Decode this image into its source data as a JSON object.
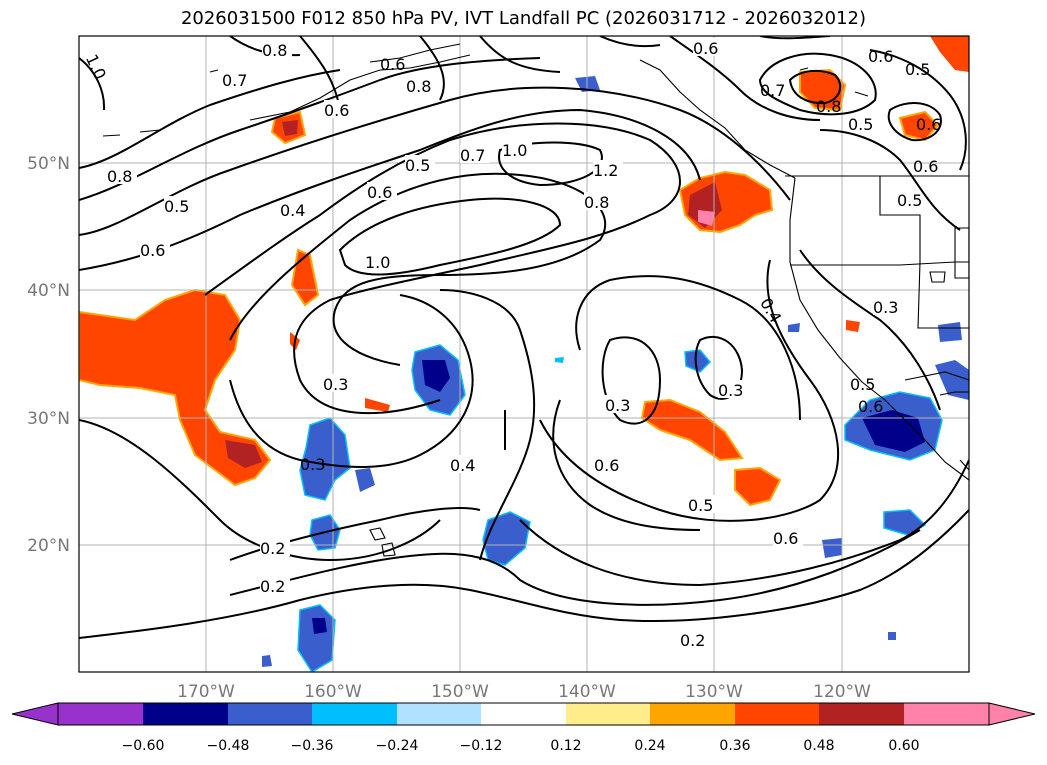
{
  "title": "2026031500 F012 850 hPa PV, IVT Landfall PC (2026031712 - 2026032012)",
  "lon_ticks": [
    "170°W",
    "160°W",
    "150°W",
    "140°W",
    "130°W",
    "120°W"
  ],
  "lat_ticks": [
    "50°N",
    "40°N",
    "30°N",
    "20°N"
  ],
  "colorbar": {
    "tick_labels": [
      "−0.60",
      "−0.48",
      "−0.36",
      "−0.24",
      "−0.12",
      "0.12",
      "0.24",
      "0.36",
      "0.48",
      "0.60"
    ],
    "colors": [
      "#9932cc",
      "#00008b",
      "#3a5fcd",
      "#00bfff",
      "#b0e2ff",
      "#ffffff",
      "#ffec8b",
      "#ffa500",
      "#ff4500",
      "#b22222",
      "#ff82ab"
    ]
  },
  "contour_labels": [
    "0.8",
    "1.0",
    "0.7",
    "0.6",
    "0.8",
    "0.6",
    "0.6",
    "0.5",
    "0.8",
    "0.5",
    "0.6",
    "0.4",
    "0.6",
    "0.5",
    "0.7",
    "1.0",
    "1.2",
    "0.8",
    "1.0",
    "0.3",
    "0.4",
    "0.3",
    "0.3",
    "0.6",
    "0.5",
    "0.6",
    "0.2",
    "0.2",
    "0.2",
    "0.3",
    "0.4",
    "0.3",
    "0.6",
    "0.7",
    "0.8",
    "0.5",
    "0.6",
    "0.5",
    "0.6",
    "0.5",
    "0.6"
  ]
}
